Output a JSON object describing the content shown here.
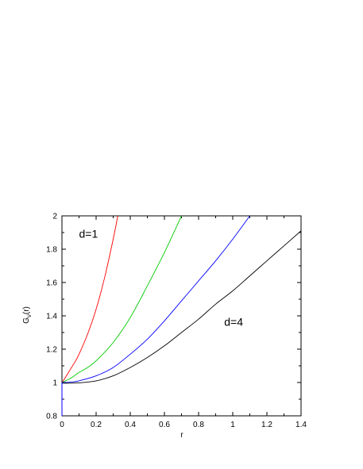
{
  "chart_data": {
    "type": "line",
    "title": "",
    "xlabel": "r",
    "ylabel": "G_ν(r)",
    "ylabel_main": "G",
    "ylabel_sub": "ν",
    "ylabel_rest": "(r)",
    "xlim": [
      0,
      1.4
    ],
    "ylim": [
      0.8,
      2.0
    ],
    "grid": false,
    "xticks": [
      0,
      0.2,
      0.4,
      0.6,
      0.8,
      1.0,
      1.2,
      1.4
    ],
    "xtick_labels": [
      "0",
      "0.2",
      "0.4",
      "0.6",
      "0.8",
      "1",
      "1.2",
      "1.4"
    ],
    "yticks": [
      0.8,
      1.0,
      1.2,
      1.4,
      1.6,
      1.8,
      2.0
    ],
    "ytick_labels": [
      "0.8",
      "1",
      "1.2",
      "1.4",
      "1.6",
      "1.8",
      "2"
    ],
    "annotations": [
      {
        "text": "d=1",
        "x": 0.1,
        "y": 1.87
      },
      {
        "text": "d=4",
        "x": 0.95,
        "y": 1.34
      }
    ],
    "series": [
      {
        "color": "#ff0000",
        "x": [
          0,
          0.02,
          0.05,
          0.08,
          0.1,
          0.15,
          0.2,
          0.25,
          0.3,
          0.327
        ],
        "y": [
          1.0,
          1.03,
          1.08,
          1.13,
          1.17,
          1.29,
          1.44,
          1.63,
          1.86,
          2.0
        ]
      },
      {
        "color": "#00cc00",
        "x": [
          0,
          0.02,
          0.05,
          0.1,
          0.15,
          0.2,
          0.3,
          0.4,
          0.5,
          0.6,
          0.7
        ],
        "y": [
          1.0,
          1.01,
          1.025,
          1.06,
          1.09,
          1.13,
          1.24,
          1.39,
          1.58,
          1.78,
          2.0
        ]
      },
      {
        "color": "#0000ff",
        "x": [
          0,
          0.05,
          0.1,
          0.2,
          0.3,
          0.4,
          0.5,
          0.6,
          0.7,
          0.8,
          0.9,
          1.0,
          1.1
        ],
        "y": [
          1.0,
          1.002,
          1.01,
          1.04,
          1.09,
          1.17,
          1.26,
          1.37,
          1.49,
          1.61,
          1.73,
          1.86,
          2.0
        ]
      },
      {
        "color": "#000000",
        "x": [
          0,
          0.05,
          0.1,
          0.2,
          0.3,
          0.4,
          0.5,
          0.6,
          0.7,
          0.8,
          0.9,
          1.0,
          1.1,
          1.2,
          1.3,
          1.4
        ],
        "y": [
          0.996,
          0.996,
          0.998,
          1.01,
          1.04,
          1.09,
          1.15,
          1.22,
          1.3,
          1.38,
          1.47,
          1.55,
          1.64,
          1.73,
          1.82,
          1.91
        ]
      }
    ]
  }
}
